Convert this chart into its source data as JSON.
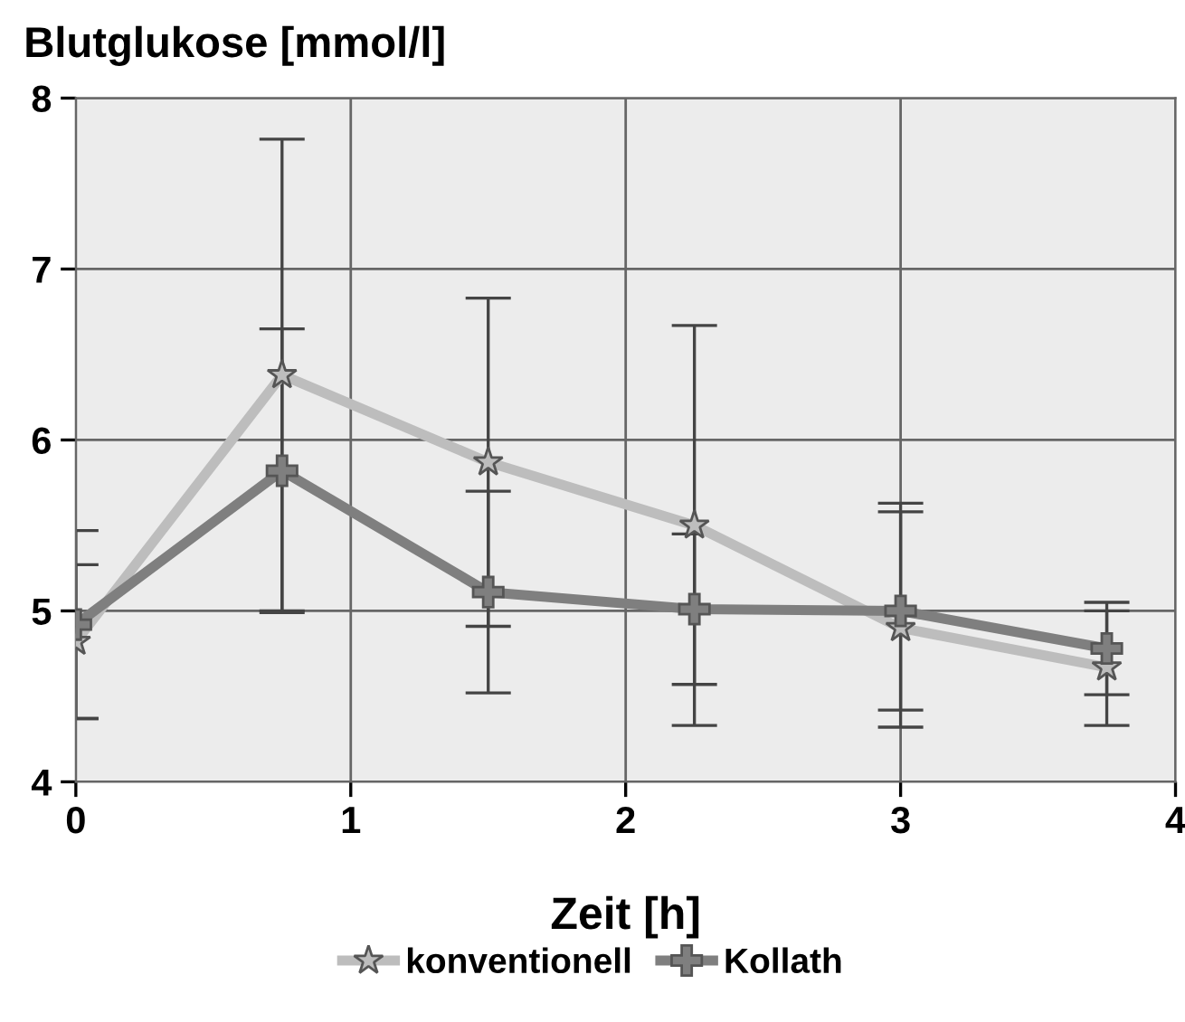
{
  "chart_data": {
    "type": "line",
    "ylabel": "Blutglukose [mmol/l]",
    "xlabel": "Zeit [h]",
    "x": [
      0,
      0.75,
      1.5,
      2.25,
      3,
      3.75
    ],
    "series": [
      {
        "name": "konventionell",
        "color": "#bdbdbd",
        "marker": "star",
        "values": [
          4.82,
          6.38,
          5.87,
          5.5,
          4.9,
          4.67
        ],
        "errors": [
          [
            4.37,
            5.27
          ],
          [
            5.0,
            7.76
          ],
          [
            4.91,
            6.83
          ],
          [
            4.33,
            6.67
          ],
          [
            4.32,
            5.63
          ],
          [
            4.33,
            5.0
          ]
        ]
      },
      {
        "name": "Kollath",
        "color": "#7f7f7f",
        "marker": "cross",
        "values": [
          4.92,
          5.82,
          5.11,
          5.01,
          5.0,
          4.78
        ],
        "errors": [
          [
            4.37,
            5.47
          ],
          [
            4.99,
            6.65
          ],
          [
            4.52,
            5.7
          ],
          [
            4.57,
            5.45
          ],
          [
            4.42,
            5.58
          ],
          [
            4.51,
            5.05
          ]
        ]
      }
    ],
    "xlim": [
      0,
      4
    ],
    "xticks": [
      0,
      1,
      2,
      3,
      4
    ],
    "ylim": [
      4,
      8
    ],
    "yticks": [
      4,
      5,
      6,
      7,
      8
    ],
    "grid": true,
    "legend": "bottom",
    "line_style": "solid"
  }
}
